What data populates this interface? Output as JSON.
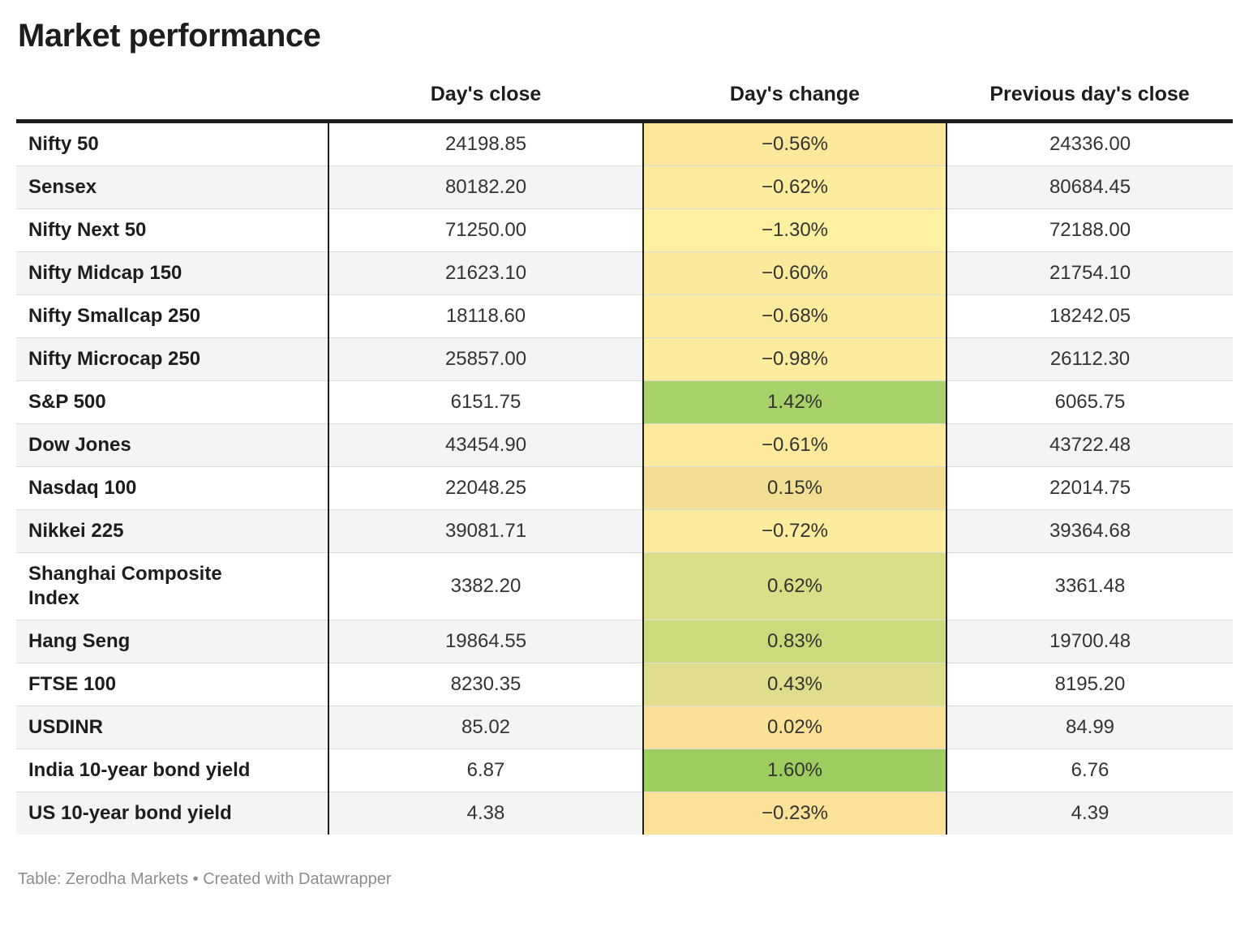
{
  "title": "Market performance",
  "footer": {
    "text": "Table: Zerodha Markets • Created with Datawrapper"
  },
  "chart_data": {
    "type": "table",
    "title": "Market performance",
    "columns": [
      "Day's close",
      "Day's change",
      "Previous day's close"
    ],
    "legend": "Day's change column is heat-colored: pale yellow = negative, green = positive",
    "rows": [
      {
        "label": "Nifty 50",
        "close": "24198.85",
        "change": "−0.56%",
        "prev": "24336.00",
        "change_color": "#fce89b"
      },
      {
        "label": "Sensex",
        "close": "80182.20",
        "change": "−0.62%",
        "prev": "80684.45",
        "change_color": "#fdeb9e"
      },
      {
        "label": "Nifty Next 50",
        "close": "71250.00",
        "change": "−1.30%",
        "prev": "72188.00",
        "change_color": "#fdf1a1"
      },
      {
        "label": "Nifty Midcap 150",
        "close": "21623.10",
        "change": "−0.60%",
        "prev": "21754.10",
        "change_color": "#fcea9c"
      },
      {
        "label": "Nifty Smallcap 250",
        "close": "18118.60",
        "change": "−0.68%",
        "prev": "18242.05",
        "change_color": "#fcea9d"
      },
      {
        "label": "Nifty Microcap 250",
        "close": "25857.00",
        "change": "−0.98%",
        "prev": "26112.30",
        "change_color": "#fcec9e"
      },
      {
        "label": "S&P 500",
        "close": "6151.75",
        "change": "1.42%",
        "prev": "6065.75",
        "change_color": "#a8d169"
      },
      {
        "label": "Dow Jones",
        "close": "43454.90",
        "change": "−0.61%",
        "prev": "43722.48",
        "change_color": "#fdea9d"
      },
      {
        "label": "Nasdaq 100",
        "close": "22048.25",
        "change": "0.15%",
        "prev": "22014.75",
        "change_color": "#f2df93"
      },
      {
        "label": "Nikkei 225",
        "close": "39081.71",
        "change": "−0.72%",
        "prev": "39364.68",
        "change_color": "#fdeb9e"
      },
      {
        "label": "Shanghai Composite\nIndex",
        "close": "3382.20",
        "change": "0.62%",
        "prev": "3361.48",
        "change_color": "#d9de87"
      },
      {
        "label": "Hang Seng",
        "close": "19864.55",
        "change": "0.83%",
        "prev": "19700.48",
        "change_color": "#cdda7c"
      },
      {
        "label": "FTSE 100",
        "close": "8230.35",
        "change": "0.43%",
        "prev": "8195.20",
        "change_color": "#e0de8d"
      },
      {
        "label": "USDINR",
        "close": "85.02",
        "change": "0.02%",
        "prev": "84.99",
        "change_color": "#fbe097"
      },
      {
        "label": "India 10-year bond yield",
        "close": "6.87",
        "change": "1.60%",
        "prev": "6.76",
        "change_color": "#9ccd5e"
      },
      {
        "label": "US 10-year bond yield",
        "close": "4.38",
        "change": "−0.23%",
        "prev": "4.39",
        "change_color": "#fce199"
      }
    ]
  }
}
